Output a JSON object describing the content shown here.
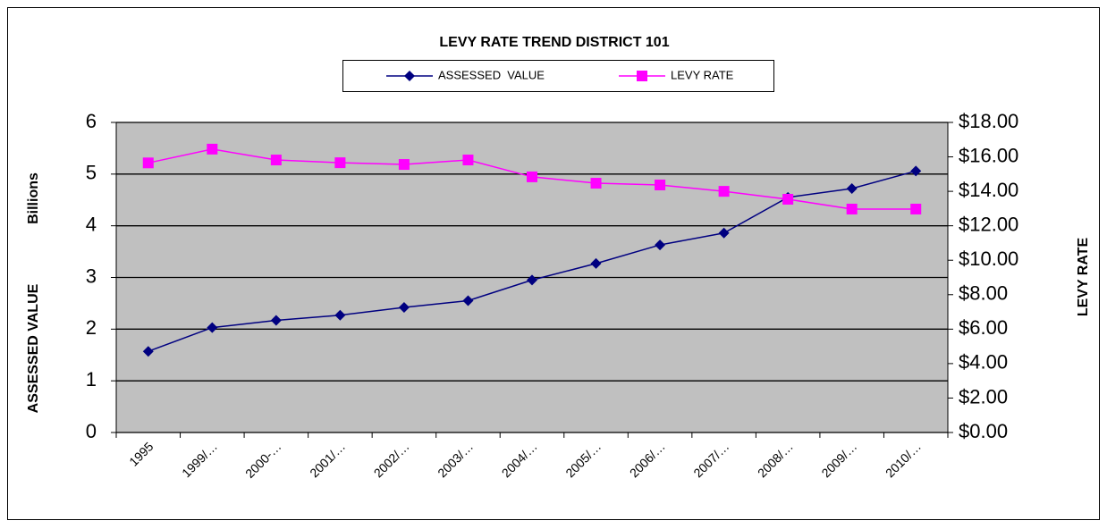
{
  "chart_data": {
    "type": "line",
    "title": "LEVY RATE TREND DISTRICT 101",
    "ylabel": "ASSESSED VALUE",
    "yunit": "Billions",
    "y2label": "LEVY RATE",
    "categories": [
      "1995",
      "1999/…",
      "2000-…",
      "2001/…",
      "2002/…",
      "2003/…",
      "2004/…",
      "2005/…",
      "2006/…",
      "2007/…",
      "2008/…",
      "2009/…",
      "2010/…"
    ],
    "series": [
      {
        "name": "ASSESSED  VALUE",
        "color": "#000080",
        "marker": "diamond",
        "values": [
          1.57,
          2.03,
          2.17,
          2.27,
          2.42,
          2.55,
          2.95,
          3.27,
          3.63,
          3.86,
          4.55,
          4.72,
          5.06
        ]
      },
      {
        "name": "LEVY RATE",
        "color": "#ff00ff",
        "marker": "square",
        "axis": "y2",
        "values": [
          15.65,
          16.45,
          15.82,
          15.66,
          15.56,
          15.82,
          14.84,
          14.47,
          14.37,
          14.0,
          13.54,
          12.97,
          12.97
        ]
      }
    ],
    "ylim": [
      0,
      6
    ],
    "yticks": [
      0,
      1,
      2,
      3,
      4,
      5,
      6
    ],
    "y2lim": [
      0,
      18
    ],
    "y2ticks": [
      {
        "value": 0,
        "label": "$0.00"
      },
      {
        "value": 2,
        "label": "$2.00"
      },
      {
        "value": 4,
        "label": "$4.00"
      },
      {
        "value": 6,
        "label": "$6.00"
      },
      {
        "value": 8,
        "label": "$8.00"
      },
      {
        "value": 10,
        "label": "$10.00"
      },
      {
        "value": 12,
        "label": "$12.00"
      },
      {
        "value": 14,
        "label": "$14.00"
      },
      {
        "value": 16,
        "label": "$16.00"
      },
      {
        "value": 18,
        "label": "$18.00"
      }
    ],
    "grid": true,
    "legend": "top"
  }
}
